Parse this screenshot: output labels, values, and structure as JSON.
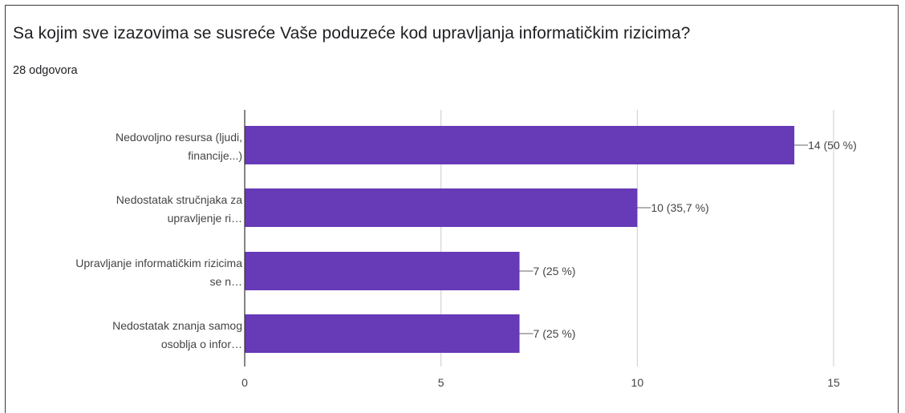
{
  "question": {
    "title": "Sa kojim sve izazovima se susreće Vaše poduzeće kod upravljanja informatičkim rizicima?",
    "response_count": "28 odgovora"
  },
  "colors": {
    "bar": "#673AB7",
    "grid": "#cccccc",
    "axis": "#333333",
    "text": "#444444"
  },
  "chart_data": {
    "type": "bar",
    "orientation": "horizontal",
    "categories": [
      [
        "Nedovoljno resursa (ljudi,",
        "financije...)"
      ],
      [
        "Nedostatak stručnjaka za",
        "upravljenje ri…"
      ],
      [
        "Upravljanje informatičkim rizicima",
        "se n…"
      ],
      [
        "Nedostatak znanja samog",
        "osoblja o infor…"
      ]
    ],
    "values": [
      14,
      10,
      7,
      7
    ],
    "value_labels": [
      "14 (50 %)",
      "10 (35,7 %)",
      "7 (25 %)",
      "7 (25 %)"
    ],
    "xlim": [
      0,
      15
    ],
    "xticks": [
      "0",
      "5",
      "10",
      "15"
    ],
    "grid": true,
    "legend": "none"
  }
}
